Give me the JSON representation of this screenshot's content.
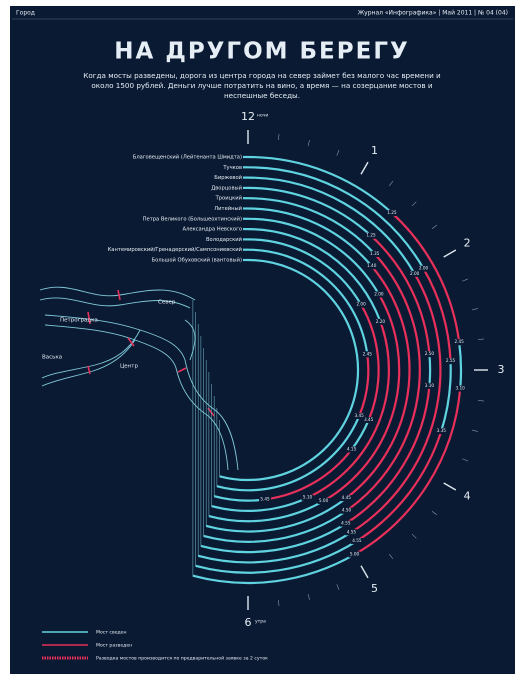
{
  "header": {
    "section": "Город",
    "issue": "Журнал «Инфографика» | Май 2011 | № 04 (04)"
  },
  "chart_data": {
    "type": "clock-timeline",
    "title": "НА ДРУГОМ БЕРЕГУ",
    "subtitle_lines": [
      "Когда мосты разведены, дорога из центра города на север займет без малого час времени и",
      "около 1500 рублей. Деньги лучше потратить на вино, а время — на созерцание мостов и",
      "неспешные беседы."
    ],
    "clock_ticks": [
      {
        "value": 0,
        "label": "12"
      },
      1,
      2,
      3,
      4,
      5,
      6
    ],
    "start_note": "ночи",
    "end_note": "утра",
    "closed_color": "#5fd3e0",
    "open_color": "#e8305a",
    "bridges": [
      {
        "name": "Благовещенский (Лейтенанта Шмидта)",
        "openings": [
          {
            "open": "1.25",
            "close": "2.45"
          },
          {
            "open": "3.10",
            "close": "5.00"
          }
        ]
      },
      {
        "name": "Тучков",
        "openings": [
          {
            "open": "2.00",
            "close": "2.55"
          },
          {
            "open": "3.35",
            "close": "4.55"
          }
        ]
      },
      {
        "name": "Биржевой",
        "openings": [
          {
            "open": "2.00",
            "close": "4.55"
          }
        ]
      },
      {
        "name": "Дворцовый",
        "openings": [
          {
            "open": "1.25",
            "close": "2.50"
          },
          {
            "open": "3.10",
            "close": "4.55"
          }
        ]
      },
      {
        "name": "Троицкий",
        "openings": [
          {
            "open": "1.35",
            "close": "4.50"
          }
        ]
      },
      {
        "name": "Литейный",
        "openings": [
          {
            "open": "1.40",
            "close": "4.45"
          }
        ]
      },
      {
        "name": "Петра Великого (Большеохтинский)",
        "openings": [
          {
            "open": "2.00",
            "close": "5.00"
          }
        ]
      },
      {
        "name": "Александра Невского",
        "openings": [
          {
            "open": "2.20",
            "close": "5.10"
          }
        ]
      },
      {
        "name": "Володарский",
        "openings": [
          {
            "open": "2.00",
            "close": "3.45"
          },
          {
            "open": "4.15",
            "close": "5.45"
          }
        ]
      },
      {
        "name": "Кантемировский/Гренадерский/Сампсониевский",
        "openings": [
          {
            "open": "2.45",
            "close": "3.45"
          }
        ]
      },
      {
        "name": "Большой Обуховский (вантовый)",
        "openings": []
      }
    ],
    "districts": [
      "Север",
      "Петроградка",
      "Васька",
      "Центр"
    ],
    "legend": {
      "closed": "Мост сведен",
      "open": "Мост разведен",
      "on_request": "Разводка мостов производится по предварительной заявке за 2 суток"
    }
  }
}
